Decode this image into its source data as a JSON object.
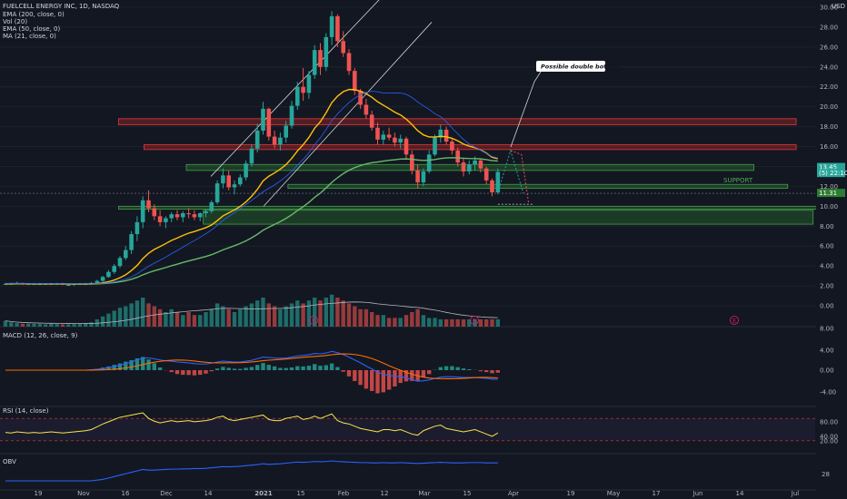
{
  "header": {
    "symbol": "FUELCELL ENERGY INC, 1D, NASDAQ",
    "currency": "USD",
    "indicators": [
      "EMA (200, close, 0)",
      "Vol (20)",
      "EMA (50, close, 0)",
      "MA (21, close, 0)"
    ]
  },
  "panes": {
    "macd_label": "MACD (12, 26, close, 9)",
    "rsi_label": "RSI (14, close)",
    "obv_label": "OBV"
  },
  "price_axis": {
    "ticks": [
      "30.00",
      "28.00",
      "26.00",
      "24.00",
      "22.00",
      "20.00",
      "18.00",
      "16.00",
      "14.00",
      "12.00",
      "10.00",
      "8.00",
      "6.00",
      "4.00",
      "2.00",
      "0.00"
    ],
    "top_tick_partial": "30.00",
    "price_tag": "13.45",
    "price_tag_sub": "(5) 22:10",
    "support_tag": "11.31"
  },
  "macd_axis": [
    "8.00",
    "4.00",
    "0.00",
    "-4.00"
  ],
  "rsi_axis": [
    "80.00",
    "40.00",
    "20.00"
  ],
  "obv_axis": [
    "28"
  ],
  "time_axis": [
    "19",
    "Nov",
    "16",
    "Dec",
    "14",
    "2021",
    "15",
    "Feb",
    "12",
    "Mar",
    "15",
    "Apr",
    "19",
    "May",
    "17",
    "Jun",
    "14",
    "Jul"
  ],
  "annotations": {
    "double_bottom": "Possible double bottom",
    "support": "SUPPORT",
    "earnings_marker": "E"
  },
  "colors": {
    "up": "#26a69a",
    "down": "#ef5350",
    "ema200": "#66bb6a",
    "ema50": "#ffc107",
    "ma21": "#2962ff",
    "resistance_zone": "#c62828",
    "support_zone": "#2e7d32"
  },
  "chart_data": {
    "type": "candlestick",
    "y_range": [
      -1,
      30
    ],
    "candles": [
      [
        2.2,
        2.3,
        2.1,
        2.2
      ],
      [
        2.2,
        2.3,
        2.1,
        2.3
      ],
      [
        2.3,
        2.4,
        2.2,
        2.3
      ],
      [
        2.3,
        2.3,
        2.1,
        2.2
      ],
      [
        2.2,
        2.3,
        2.1,
        2.2
      ],
      [
        2.2,
        2.3,
        2.1,
        2.2
      ],
      [
        2.2,
        2.3,
        2.1,
        2.2
      ],
      [
        2.2,
        2.2,
        2.1,
        2.2
      ],
      [
        2.2,
        2.3,
        2.1,
        2.2
      ],
      [
        2.2,
        2.3,
        2.1,
        2.2
      ],
      [
        2.2,
        2.3,
        2.1,
        2.1
      ],
      [
        2.1,
        2.2,
        2.0,
        2.1
      ],
      [
        2.1,
        2.2,
        2.0,
        2.2
      ],
      [
        2.2,
        2.3,
        2.1,
        2.2
      ],
      [
        2.2,
        2.3,
        2.1,
        2.2
      ],
      [
        2.2,
        2.4,
        2.1,
        2.3
      ],
      [
        2.3,
        2.6,
        2.2,
        2.5
      ],
      [
        2.5,
        3.0,
        2.4,
        2.9
      ],
      [
        2.9,
        3.6,
        2.8,
        3.4
      ],
      [
        3.4,
        4.2,
        3.2,
        4.0
      ],
      [
        4.0,
        5.0,
        3.8,
        4.8
      ],
      [
        4.8,
        6.0,
        4.6,
        5.6
      ],
      [
        5.6,
        7.5,
        5.2,
        7.2
      ],
      [
        7.2,
        9.0,
        6.5,
        8.4
      ],
      [
        8.4,
        11.0,
        7.8,
        10.6
      ],
      [
        10.6,
        11.6,
        9.4,
        9.8
      ],
      [
        9.8,
        10.2,
        8.6,
        9.0
      ],
      [
        9.0,
        9.6,
        8.0,
        8.4
      ],
      [
        8.4,
        9.0,
        7.8,
        8.8
      ],
      [
        8.8,
        9.4,
        8.4,
        9.2
      ],
      [
        9.2,
        9.6,
        8.6,
        8.9
      ],
      [
        8.9,
        9.5,
        8.4,
        9.3
      ],
      [
        9.3,
        9.8,
        8.8,
        9.2
      ],
      [
        9.2,
        9.6,
        8.6,
        8.9
      ],
      [
        8.9,
        9.4,
        8.5,
        9.3
      ],
      [
        9.3,
        9.7,
        8.9,
        9.5
      ],
      [
        9.5,
        10.6,
        9.3,
        10.4
      ],
      [
        10.4,
        12.6,
        10.2,
        12.3
      ],
      [
        12.3,
        13.8,
        11.8,
        13.1
      ],
      [
        13.1,
        13.6,
        11.6,
        11.9
      ],
      [
        11.9,
        12.6,
        11.2,
        12.2
      ],
      [
        12.2,
        13.2,
        12.0,
        12.9
      ],
      [
        12.9,
        14.6,
        12.6,
        14.3
      ],
      [
        14.3,
        16.2,
        14.0,
        15.8
      ],
      [
        15.8,
        18.3,
        15.4,
        17.6
      ],
      [
        17.6,
        20.5,
        17.2,
        19.8
      ],
      [
        19.8,
        19.9,
        16.6,
        17.0
      ],
      [
        17.0,
        17.6,
        15.8,
        16.2
      ],
      [
        16.2,
        17.4,
        15.6,
        16.9
      ],
      [
        16.9,
        18.6,
        16.4,
        18.1
      ],
      [
        18.1,
        20.6,
        17.8,
        20.1
      ],
      [
        20.1,
        22.5,
        19.7,
        22.0
      ],
      [
        22.0,
        23.9,
        20.6,
        21.4
      ],
      [
        21.4,
        23.6,
        20.8,
        23.2
      ],
      [
        23.2,
        26.2,
        22.8,
        25.7
      ],
      [
        25.7,
        26.4,
        23.2,
        24.0
      ],
      [
        24.0,
        27.4,
        23.6,
        27.0
      ],
      [
        27.0,
        29.6,
        26.2,
        29.1
      ],
      [
        29.1,
        29.3,
        26.0,
        26.6
      ],
      [
        26.6,
        27.6,
        25.0,
        25.4
      ],
      [
        25.4,
        25.8,
        23.2,
        23.6
      ],
      [
        23.6,
        23.9,
        21.2,
        21.6
      ],
      [
        21.6,
        21.8,
        19.8,
        20.2
      ],
      [
        20.2,
        20.8,
        18.8,
        19.2
      ],
      [
        19.2,
        19.6,
        17.6,
        17.9
      ],
      [
        17.9,
        18.4,
        16.2,
        16.7
      ],
      [
        16.7,
        17.6,
        16.2,
        17.2
      ],
      [
        17.2,
        17.9,
        16.6,
        16.9
      ],
      [
        16.9,
        17.4,
        16.0,
        16.4
      ],
      [
        16.4,
        17.2,
        15.8,
        16.8
      ],
      [
        16.8,
        17.0,
        14.8,
        15.2
      ],
      [
        15.2,
        15.6,
        13.2,
        13.6
      ],
      [
        13.6,
        14.2,
        11.8,
        12.4
      ],
      [
        12.4,
        13.8,
        12.0,
        13.5
      ],
      [
        13.5,
        15.6,
        13.3,
        15.2
      ],
      [
        15.2,
        17.2,
        15.0,
        16.9
      ],
      [
        16.9,
        18.2,
        16.4,
        17.7
      ],
      [
        17.7,
        18.0,
        16.2,
        16.5
      ],
      [
        16.5,
        16.8,
        15.2,
        15.6
      ],
      [
        15.6,
        15.9,
        14.0,
        14.4
      ],
      [
        14.4,
        14.8,
        13.0,
        13.5
      ],
      [
        13.5,
        14.6,
        13.2,
        14.2
      ],
      [
        14.2,
        15.0,
        13.6,
        14.6
      ],
      [
        14.6,
        14.8,
        13.4,
        13.8
      ],
      [
        13.8,
        14.0,
        12.2,
        12.6
      ],
      [
        12.6,
        12.8,
        11.0,
        11.4
      ],
      [
        11.4,
        13.8,
        11.2,
        13.45
      ]
    ],
    "volume": [
      2,
      1.5,
      1.2,
      1,
      1,
      1,
      0.9,
      0.8,
      1,
      0.9,
      0.8,
      0.8,
      0.9,
      1,
      1.2,
      1.5,
      2.5,
      3.5,
      4.5,
      5.5,
      6.5,
      7,
      8,
      9,
      10,
      8,
      7,
      6,
      5,
      6,
      5,
      4,
      5,
      4,
      4,
      5,
      6,
      8,
      7,
      6,
      5,
      6,
      7,
      8,
      9,
      10,
      8,
      7,
      6,
      7,
      8,
      9,
      8,
      9,
      10,
      9,
      10,
      11,
      10,
      9,
      8,
      7,
      6,
      6,
      5,
      4,
      4,
      3,
      3,
      3,
      4,
      5,
      6,
      4,
      3,
      3,
      2.5,
      2.5,
      2.5,
      2.5,
      2.5,
      2.5,
      2.5,
      2.5,
      2.5,
      2.5,
      2.5
    ],
    "rsi": [
      45,
      44,
      46,
      45,
      44,
      45,
      44,
      45,
      46,
      45,
      44,
      45,
      46,
      47,
      48,
      50,
      55,
      60,
      64,
      68,
      72,
      74,
      76,
      78,
      80,
      70,
      65,
      62,
      64,
      66,
      64,
      65,
      66,
      64,
      65,
      66,
      68,
      72,
      74,
      68,
      66,
      68,
      70,
      72,
      74,
      76,
      68,
      66,
      66,
      70,
      72,
      74,
      68,
      70,
      74,
      70,
      74,
      78,
      66,
      62,
      60,
      56,
      52,
      50,
      48,
      46,
      50,
      50,
      48,
      50,
      46,
      42,
      40,
      48,
      52,
      56,
      58,
      52,
      50,
      48,
      46,
      48,
      50,
      46,
      42,
      38,
      44
    ],
    "macd": [
      0,
      0,
      0,
      0,
      0,
      0,
      0,
      0,
      0,
      0,
      0,
      0,
      0,
      0,
      0,
      0.1,
      0.2,
      0.4,
      0.6,
      0.9,
      1.2,
      1.6,
      2.0,
      2.5,
      3.0,
      3.0,
      2.8,
      2.5,
      2.3,
      2.2,
      2.0,
      1.9,
      1.8,
      1.6,
      1.5,
      1.5,
      1.7,
      2.0,
      2.2,
      2.1,
      2.0,
      2.0,
      2.2,
      2.4,
      2.8,
      3.2,
      3.1,
      3.0,
      2.9,
      3.0,
      3.2,
      3.5,
      3.6,
      3.8,
      4.1,
      4.0,
      4.2,
      4.6,
      4.3,
      3.8,
      3.2,
      2.5,
      1.8,
      1.0,
      0.3,
      -0.5,
      -1.0,
      -1.3,
      -1.5,
      -1.6,
      -1.9,
      -2.3,
      -2.7,
      -2.6,
      -2.4,
      -2.0,
      -1.7,
      -1.6,
      -1.6,
      -1.7,
      -1.8,
      -1.8,
      -1.8,
      -1.9,
      -2.0,
      -2.2,
      -2.2
    ],
    "obv": [
      10,
      10,
      10,
      10,
      10,
      10,
      10,
      10,
      10,
      10,
      10,
      10,
      10,
      10,
      10,
      10,
      10.5,
      11,
      12,
      13,
      14,
      15,
      16,
      17,
      18,
      17.5,
      17.5,
      17.8,
      18,
      18.2,
      18.2,
      18.4,
      18.4,
      18.6,
      18.6,
      18.8,
      19.2,
      19.6,
      20,
      19.8,
      20,
      20.2,
      20.6,
      21,
      21.4,
      22,
      21.6,
      21.8,
      22,
      22.4,
      22.8,
      23.2,
      23,
      23.2,
      23.6,
      23.4,
      23.6,
      24,
      23.6,
      23.4,
      23.2,
      23,
      22.8,
      22.8,
      22.6,
      22.6,
      22.8,
      22.6,
      22.6,
      22.8,
      22.6,
      22.4,
      22.2,
      22.4,
      22.6,
      22.8,
      23,
      22.8,
      22.6,
      22.6,
      22.6,
      22.8,
      22.8,
      22.8,
      22.6,
      22.6,
      22.6
    ],
    "zones": [
      {
        "kind": "resistance",
        "y1": 18.2,
        "y2": 18.8,
        "x_from": 0.14,
        "x_to": 0.94
      },
      {
        "kind": "resistance",
        "y1": 15.7,
        "y2": 16.2,
        "x_from": 0.17,
        "x_to": 0.94
      },
      {
        "kind": "support",
        "y1": 13.6,
        "y2": 14.2,
        "x_from": 0.22,
        "x_to": 0.89
      },
      {
        "kind": "support",
        "y1": 11.8,
        "y2": 12.2,
        "x_from": 0.34,
        "x_to": 0.93
      },
      {
        "kind": "support",
        "y1": 9.7,
        "y2": 10.0,
        "x_from": 0.14,
        "x_to": 0.965
      },
      {
        "kind": "support",
        "y1": 8.2,
        "y2": 9.6,
        "x_from": 0.24,
        "x_to": 0.96
      }
    ]
  }
}
